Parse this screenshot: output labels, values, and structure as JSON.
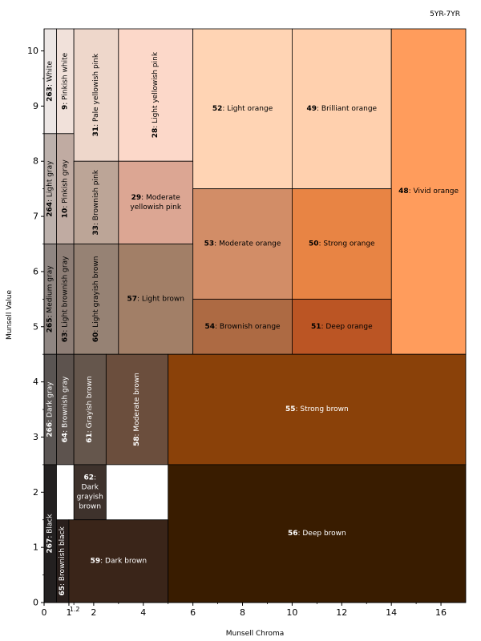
{
  "chart_data": {
    "type": "heatmap",
    "title": "5YR-7YR",
    "xlabel": "Munsell Chroma",
    "ylabel": "Munsell Value",
    "xlim": [
      0,
      17
    ],
    "ylim": [
      0,
      10.4
    ],
    "xticks": [
      0,
      1,
      2,
      4,
      6,
      8,
      10,
      12,
      14,
      16
    ],
    "xtick_labels": [
      "0",
      "1",
      "2",
      "4",
      "6",
      "8",
      "10",
      "12",
      "14",
      "16"
    ],
    "extra_tick_labels": [
      {
        "x": 1.2,
        "label": "1.2"
      }
    ],
    "yticks": [
      0,
      1,
      2,
      3,
      4,
      5,
      6,
      7,
      8,
      9,
      10
    ],
    "ytick_labels": [
      "0",
      "1",
      "2",
      "3",
      "4",
      "5",
      "6",
      "7",
      "8",
      "9",
      "10"
    ],
    "regions": [
      {
        "num": "263",
        "name": "White",
        "x0": 0,
        "x1": 0.5,
        "y0": 8.5,
        "y1": 10.4,
        "color": "#ece6e4",
        "text": "#000000",
        "rotate": true
      },
      {
        "num": "9",
        "name": "Pinkish white",
        "x0": 0.5,
        "x1": 1.2,
        "y0": 8.5,
        "y1": 10.4,
        "color": "#f1e1da",
        "text": "#000000",
        "rotate": true
      },
      {
        "num": "31",
        "name": "Pale yellowish pink",
        "x0": 1.2,
        "x1": 3,
        "y0": 8,
        "y1": 10.4,
        "color": "#eed7cb",
        "text": "#000000",
        "rotate": true
      },
      {
        "num": "28",
        "name": "Light yellowish pink",
        "x0": 3,
        "x1": 6,
        "y0": 8,
        "y1": 10.4,
        "color": "#fcd8c9",
        "text": "#000000",
        "rotate": true
      },
      {
        "num": "52",
        "name": "Light orange",
        "x0": 6,
        "x1": 10,
        "y0": 7.5,
        "y1": 10.4,
        "color": "#ffd4b4",
        "text": "#000000",
        "rotate": false
      },
      {
        "num": "49",
        "name": "Brilliant orange",
        "x0": 10,
        "x1": 14,
        "y0": 7.5,
        "y1": 10.4,
        "color": "#ffd0ae",
        "text": "#000000",
        "rotate": false
      },
      {
        "num": "48",
        "name": "Vivid orange",
        "x0": 14,
        "x1": 17,
        "y0": 4.5,
        "y1": 10.4,
        "color": "#ff9c5c",
        "text": "#000000",
        "rotate": false
      },
      {
        "num": "264",
        "name": "Light gray",
        "x0": 0,
        "x1": 0.5,
        "y0": 6.5,
        "y1": 8.5,
        "color": "#bcb1ac",
        "text": "#000000",
        "rotate": true
      },
      {
        "num": "10",
        "name": "Pinkish gray",
        "x0": 0.5,
        "x1": 1.2,
        "y0": 6.5,
        "y1": 8.5,
        "color": "#c0aba2",
        "text": "#000000",
        "rotate": true
      },
      {
        "num": "33",
        "name": "Brownish pink",
        "x0": 1.2,
        "x1": 3,
        "y0": 6.5,
        "y1": 8,
        "color": "#bca597",
        "text": "#000000",
        "rotate": true
      },
      {
        "num": "29",
        "name": "Moderate yellowish pink",
        "x0": 3,
        "x1": 6,
        "y0": 6.5,
        "y1": 8,
        "color": "#dca693",
        "text": "#000000",
        "rotate": false
      },
      {
        "num": "53",
        "name": "Moderate orange",
        "x0": 6,
        "x1": 10,
        "y0": 5.5,
        "y1": 7.5,
        "color": "#d28d67",
        "text": "#000000",
        "rotate": false
      },
      {
        "num": "50",
        "name": "Strong orange",
        "x0": 10,
        "x1": 14,
        "y0": 5.5,
        "y1": 7.5,
        "color": "#e88444",
        "text": "#000000",
        "rotate": false
      },
      {
        "num": "265",
        "name": "Medium gray",
        "x0": 0,
        "x1": 0.5,
        "y0": 4.5,
        "y1": 6.5,
        "color": "#8f8682",
        "text": "#000000",
        "rotate": true
      },
      {
        "num": "63",
        "name": "Light brownish gray",
        "x0": 0.5,
        "x1": 1.2,
        "y0": 4.5,
        "y1": 6.5,
        "color": "#8e7e76",
        "text": "#000000",
        "rotate": true
      },
      {
        "num": "60",
        "name": "Light grayish brown",
        "x0": 1.2,
        "x1": 3,
        "y0": 4.5,
        "y1": 6.5,
        "color": "#968274",
        "text": "#000000",
        "rotate": true
      },
      {
        "num": "57",
        "name": "Light brown",
        "x0": 3,
        "x1": 6,
        "y0": 4.5,
        "y1": 6.5,
        "color": "#a27f67",
        "text": "#000000",
        "rotate": false
      },
      {
        "num": "54",
        "name": "Brownish orange",
        "x0": 6,
        "x1": 10,
        "y0": 4.5,
        "y1": 5.5,
        "color": "#ad6a43",
        "text": "#000000",
        "rotate": false
      },
      {
        "num": "51",
        "name": "Deep orange",
        "x0": 10,
        "x1": 14,
        "y0": 4.5,
        "y1": 5.5,
        "color": "#bb5524",
        "text": "#000000",
        "rotate": false
      },
      {
        "num": "266",
        "name": "Dark gray",
        "x0": 0,
        "x1": 0.5,
        "y0": 2.5,
        "y1": 4.5,
        "color": "#5a5553",
        "text": "#ffffff",
        "rotate": true
      },
      {
        "num": "64",
        "name": "Brownish gray",
        "x0": 0.5,
        "x1": 1.2,
        "y0": 2.5,
        "y1": 4.5,
        "color": "#5d534e",
        "text": "#ffffff",
        "rotate": true
      },
      {
        "num": "61",
        "name": "Grayish brown",
        "x0": 1.2,
        "x1": 2.5,
        "y0": 2.5,
        "y1": 4.5,
        "color": "#65564c",
        "text": "#ffffff",
        "rotate": true
      },
      {
        "num": "58",
        "name": "Moderate brown",
        "x0": 2.5,
        "x1": 5,
        "y0": 2.5,
        "y1": 4.5,
        "color": "#6b4e3d",
        "text": "#ffffff",
        "rotate": true
      },
      {
        "num": "55",
        "name": "Strong brown",
        "x0": 5,
        "x1": 17,
        "y0": 2.5,
        "y1": 4.5,
        "color": "#8a4109",
        "text": "#ffffff",
        "rotate": false
      },
      {
        "num": "62",
        "name": "Dark grayish brown",
        "x0": 1.2,
        "x1": 2.5,
        "y0": 1.5,
        "y1": 2.5,
        "color": "#3e322c",
        "text": "#ffffff",
        "rotate": false
      },
      {
        "num": "267",
        "name": "Black",
        "x0": 0,
        "x1": 0.5,
        "y0": 0,
        "y1": 2.5,
        "color": "#232020",
        "text": "#ffffff",
        "rotate": true
      },
      {
        "num": "65",
        "name": "Brownish black",
        "x0": 0.5,
        "x1": 1,
        "y0": 0,
        "y1": 1.5,
        "color": "#291f1c",
        "text": "#ffffff",
        "rotate": true
      },
      {
        "num": "59",
        "name": "Dark brown",
        "x0": 1,
        "x1": 5,
        "y0": 0,
        "y1": 1.5,
        "color": "#3a2519",
        "text": "#ffffff",
        "rotate": false
      },
      {
        "num": "56",
        "name": "Deep brown",
        "x0": 5,
        "x1": 17,
        "y0": 0,
        "y1": 2.5,
        "color": "#391c00",
        "text": "#ffffff",
        "rotate": false
      }
    ]
  }
}
